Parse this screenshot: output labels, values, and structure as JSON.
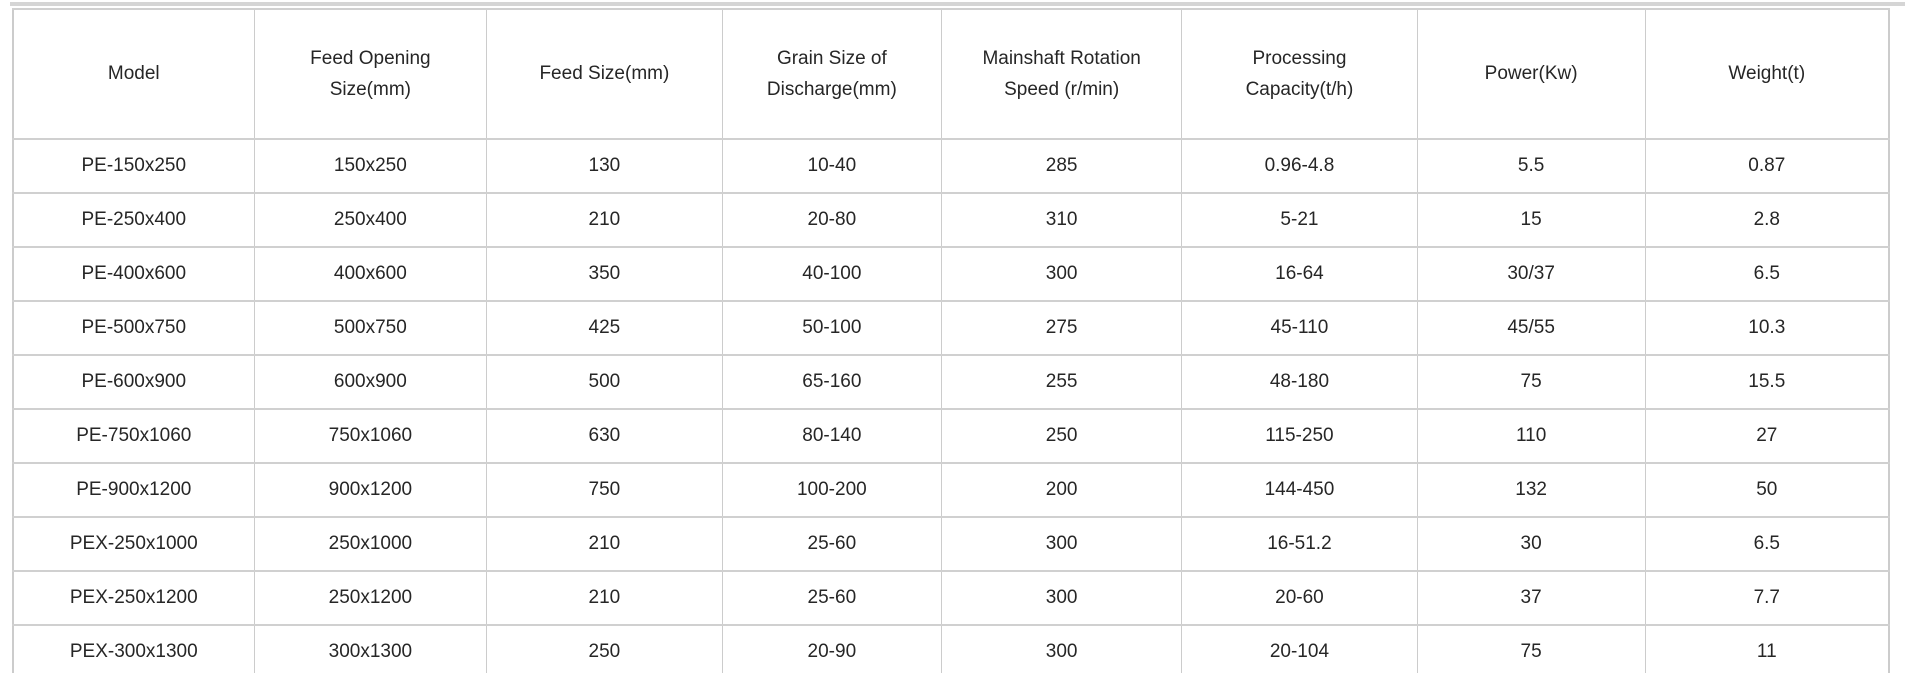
{
  "table": {
    "name": "jaw-crusher-specifications",
    "columns": [
      "Model",
      "Feed Opening Size(mm)",
      "Feed Size(mm)",
      "Grain Size of Discharge(mm)",
      "Mainshaft Rotation Speed (r/min)",
      "Processing Capacity(t/h)",
      "Power(Kw)",
      "Weight(t)"
    ],
    "rows": [
      [
        "PE-150x250",
        "150x250",
        "130",
        "10-40",
        "285",
        "0.96-4.8",
        "5.5",
        "0.87"
      ],
      [
        "PE-250x400",
        "250x400",
        "210",
        "20-80",
        "310",
        "5-21",
        "15",
        "2.8"
      ],
      [
        "PE-400x600",
        "400x600",
        "350",
        "40-100",
        "300",
        "16-64",
        "30/37",
        "6.5"
      ],
      [
        "PE-500x750",
        "500x750",
        "425",
        "50-100",
        "275",
        "45-110",
        "45/55",
        "10.3"
      ],
      [
        "PE-600x900",
        "600x900",
        "500",
        "65-160",
        "255",
        "48-180",
        "75",
        "15.5"
      ],
      [
        "PE-750x1060",
        "750x1060",
        "630",
        "80-140",
        "250",
        "115-250",
        "110",
        "27"
      ],
      [
        "PE-900x1200",
        "900x1200",
        "750",
        "100-200",
        "200",
        "144-450",
        "132",
        "50"
      ],
      [
        "PEX-250x1000",
        "250x1000",
        "210",
        "25-60",
        "300",
        "16-51.2",
        "30",
        "6.5"
      ],
      [
        "PEX-250x1200",
        "250x1200",
        "210",
        "25-60",
        "300",
        "20-60",
        "37",
        "7.7"
      ],
      [
        "PEX-300x1300",
        "300x1300",
        "250",
        "20-90",
        "300",
        "20-104",
        "75",
        "11"
      ]
    ]
  },
  "colors": {
    "border": "#cccccc",
    "text": "#262626",
    "background": "#ffffff",
    "top_divider": "#d5d5d5"
  }
}
